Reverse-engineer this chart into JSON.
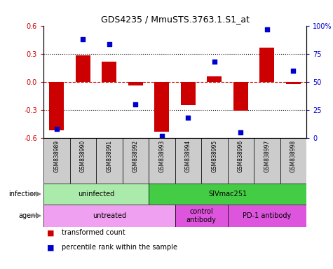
{
  "title": "GDS4235 / MmuSTS.3763.1.S1_at",
  "samples": [
    "GSM838989",
    "GSM838990",
    "GSM838991",
    "GSM838992",
    "GSM838993",
    "GSM838994",
    "GSM838995",
    "GSM838996",
    "GSM838997",
    "GSM838998"
  ],
  "bar_values": [
    -0.52,
    0.285,
    0.215,
    -0.04,
    -0.53,
    -0.25,
    0.06,
    -0.31,
    0.37,
    -0.02
  ],
  "dot_values": [
    8,
    88,
    84,
    30,
    2,
    18,
    68,
    5,
    97,
    60
  ],
  "bar_color": "#cc0000",
  "dot_color": "#0000cc",
  "ylim_left": [
    -0.6,
    0.6
  ],
  "ylim_right": [
    0,
    100
  ],
  "yticks_left": [
    -0.6,
    -0.3,
    0.0,
    0.3,
    0.6
  ],
  "yticks_right": [
    0,
    25,
    50,
    75,
    100
  ],
  "ytick_labels_right": [
    "0",
    "25",
    "50",
    "75",
    "100%"
  ],
  "hline_y": 0.0,
  "hline_color": "#cc0000",
  "dotted_lines": [
    -0.3,
    0.3
  ],
  "infection_groups": [
    {
      "label": "uninfected",
      "start": 0,
      "end": 4,
      "color": "#aaeaaa"
    },
    {
      "label": "SIVmac251",
      "start": 4,
      "end": 10,
      "color": "#44cc44"
    }
  ],
  "agent_groups": [
    {
      "label": "untreated",
      "start": 0,
      "end": 5,
      "color": "#f0a0f0"
    },
    {
      "label": "control\nantibody",
      "start": 5,
      "end": 7,
      "color": "#dd55dd"
    },
    {
      "label": "PD-1 antibody",
      "start": 7,
      "end": 10,
      "color": "#dd55dd"
    }
  ],
  "legend_items": [
    {
      "label": "transformed count",
      "color": "#cc0000"
    },
    {
      "label": "percentile rank within the sample",
      "color": "#0000cc"
    }
  ],
  "bar_width": 0.55,
  "sample_bg": "#cccccc"
}
